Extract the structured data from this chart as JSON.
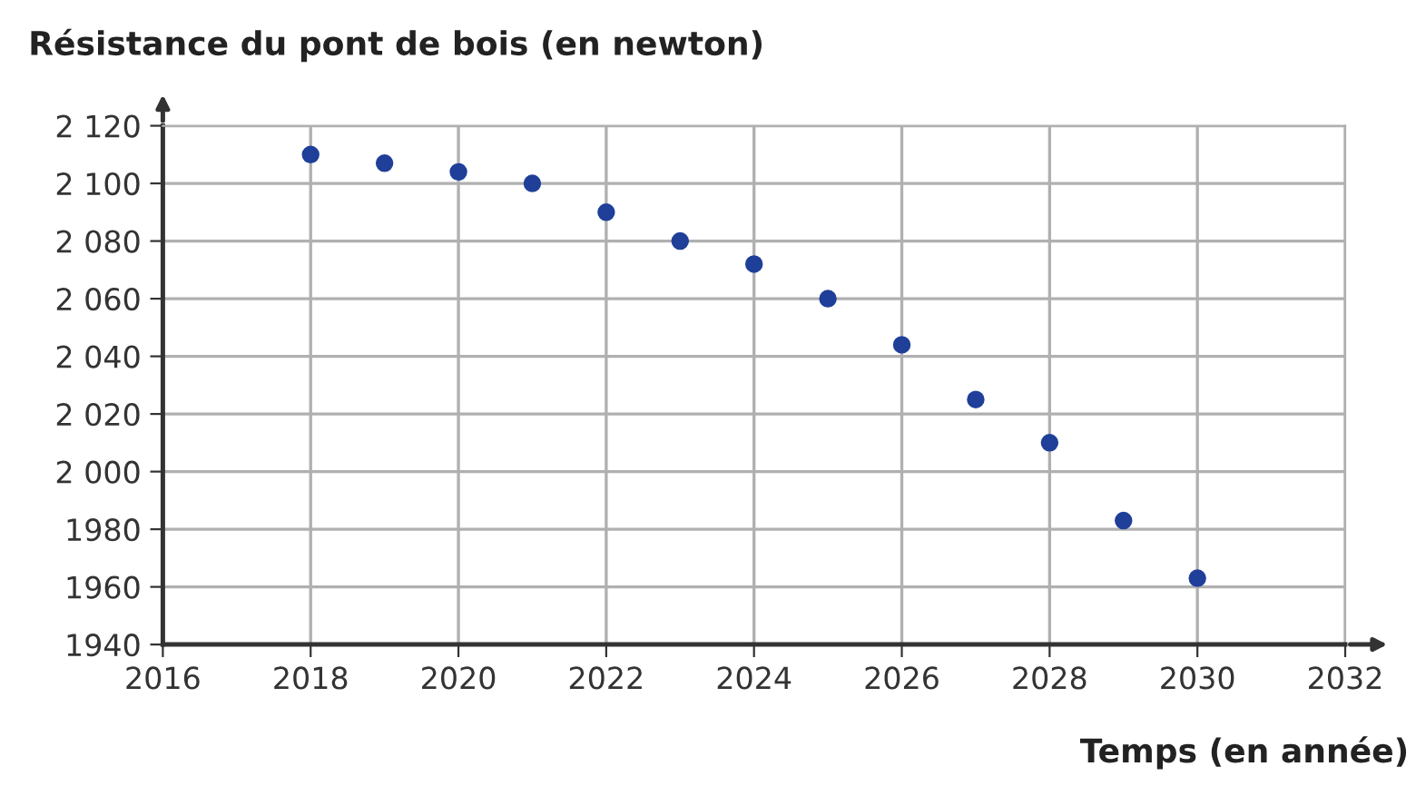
{
  "chart_data": {
    "type": "scatter",
    "title": "Résistance du pont de bois (en newton)",
    "xlabel": "Temps (en année)",
    "x": [
      2018,
      2019,
      2020,
      2021,
      2022,
      2023,
      2024,
      2025,
      2026,
      2027,
      2028,
      2029,
      2030
    ],
    "values": [
      2110,
      2107,
      2104,
      2100,
      2090,
      2080,
      2072,
      2060,
      2044,
      2025,
      2010,
      1983,
      1963
    ],
    "color": "#1f3f99",
    "marker": "circle",
    "grid": true,
    "xlim": [
      2016,
      2032
    ],
    "xticks": [
      2016,
      2018,
      2020,
      2022,
      2024,
      2026,
      2028,
      2030,
      2032
    ],
    "ylim": [
      1940,
      2120
    ],
    "yticks": [
      {
        "value": 1940,
        "label": "1940"
      },
      {
        "value": 1960,
        "label": "1960"
      },
      {
        "value": 1980,
        "label": "1980"
      },
      {
        "value": 2000,
        "label": "2 000"
      },
      {
        "value": 2020,
        "label": "2 020"
      },
      {
        "value": 2040,
        "label": "2 040"
      },
      {
        "value": 2060,
        "label": "2 060"
      },
      {
        "value": 2080,
        "label": "2 080"
      },
      {
        "value": 2100,
        "label": "2 100"
      },
      {
        "value": 2120,
        "label": "2 120"
      }
    ]
  }
}
